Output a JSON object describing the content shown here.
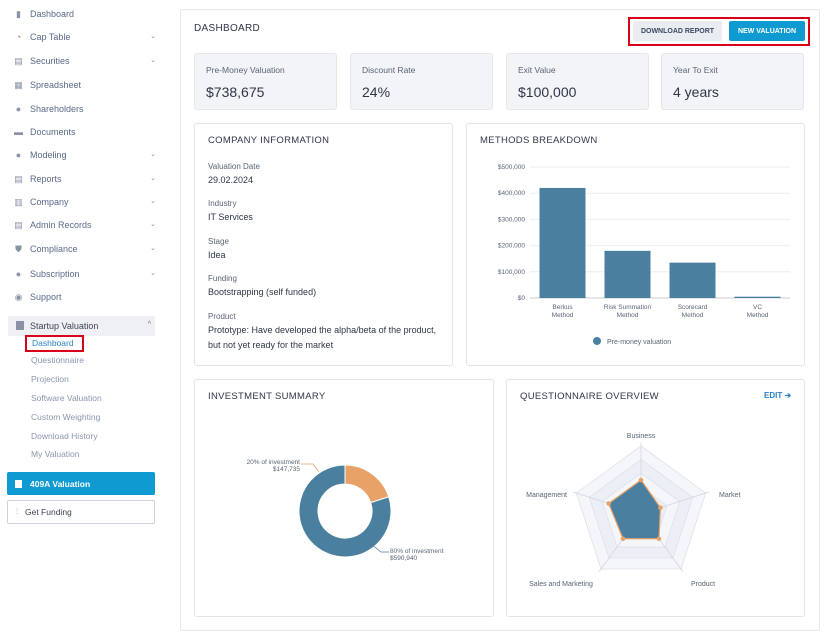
{
  "sidebar": {
    "items": [
      {
        "label": "Dashboard",
        "icon": "dashboard-icon",
        "chevron": false
      },
      {
        "label": "Cap Table",
        "icon": "pie-chart-icon",
        "chevron": true
      },
      {
        "label": "Securities",
        "icon": "document-icon",
        "chevron": true
      },
      {
        "label": "Spreadsheet",
        "icon": "table-icon",
        "chevron": false
      },
      {
        "label": "Shareholders",
        "icon": "user-icon",
        "chevron": false
      },
      {
        "label": "Documents",
        "icon": "folder-icon",
        "chevron": false
      },
      {
        "label": "Modeling",
        "icon": "bulb-icon",
        "chevron": true
      },
      {
        "label": "Reports",
        "icon": "report-icon",
        "chevron": true
      },
      {
        "label": "Company",
        "icon": "building-icon",
        "chevron": true
      },
      {
        "label": "Admin Records",
        "icon": "records-icon",
        "chevron": true
      },
      {
        "label": "Compliance",
        "icon": "shield-icon",
        "chevron": true
      },
      {
        "label": "Subscription",
        "icon": "dollar-icon",
        "chevron": true
      },
      {
        "label": "Support",
        "icon": "support-icon",
        "chevron": false
      }
    ],
    "group": {
      "label": "Startup Valuation",
      "chevron": "^"
    },
    "sub_items": [
      "Dashboard",
      "Questionnaire",
      "Projection",
      "Software Valuation",
      "Custom Weighting",
      "Download History",
      "My Valuation"
    ],
    "btn_409a": "409A Valuation",
    "btn_funding": "Get Funding"
  },
  "header": {
    "title": "DASHBOARD",
    "download_label": "DOWNLOAD REPORT",
    "new_label": "NEW VALUATION"
  },
  "kpis": [
    {
      "label": "Pre-Money Valuation",
      "value": "$738,675"
    },
    {
      "label": "Discount Rate",
      "value": "24%"
    },
    {
      "label": "Exit Value",
      "value": "$100,000"
    },
    {
      "label": "Year To Exit",
      "value": "4 years"
    }
  ],
  "company": {
    "title": "COMPANY INFORMATION",
    "fields": [
      {
        "label": "Valuation Date",
        "value": "29.02.2024"
      },
      {
        "label": "Industry",
        "value": "IT Services"
      },
      {
        "label": "Stage",
        "value": "Idea"
      },
      {
        "label": "Funding",
        "value": "Bootstrapping (self funded)"
      },
      {
        "label": "Product",
        "value": "Prototype: Have developed the alpha/beta of the product, but not yet ready for the market"
      }
    ]
  },
  "methods": {
    "title": "METHODS BREAKDOWN",
    "legend": "Pre-money valuation",
    "ticks": [
      "$0",
      "$100,000",
      "$200,000",
      "$300,000",
      "$400,000",
      "$500,000"
    ]
  },
  "investment": {
    "title": "INVESTMENT SUMMARY",
    "labels": [
      {
        "pct": "20% of investment",
        "amt": "$147,735"
      },
      {
        "pct": "80% of investment",
        "amt": "$590,940"
      }
    ]
  },
  "questionnaire": {
    "title": "QUESTIONNAIRE OVERVIEW",
    "edit_label": "EDIT ➔",
    "axes": [
      "Business",
      "Market",
      "Product",
      "Sales and Marketing",
      "Management"
    ]
  },
  "colors": {
    "accent": "#0f9ad1",
    "bar": "#4a7fa0",
    "donut_small": "#e8a268",
    "radar_point": "#e8a268"
  },
  "chart_data": [
    {
      "type": "bar",
      "categories": [
        "Berkus Method",
        "Risk Summation Method",
        "Scorecard Method",
        "VC Method"
      ],
      "series": [
        {
          "name": "Pre-money valuation",
          "values": [
            420000,
            180000,
            135000,
            5000
          ]
        }
      ],
      "ylim": [
        0,
        500000
      ],
      "grid": true,
      "legend": "bottom"
    },
    {
      "type": "pie",
      "categories": [
        "20% of investment",
        "80% of investment"
      ],
      "values": [
        147735,
        590940
      ]
    },
    {
      "type": "radar",
      "axes": [
        "Business",
        "Market",
        "Product",
        "Sales and Marketing",
        "Management"
      ],
      "values": [
        0.5,
        0.3,
        0.45,
        0.45,
        0.5
      ],
      "range": [
        0,
        1
      ]
    }
  ]
}
